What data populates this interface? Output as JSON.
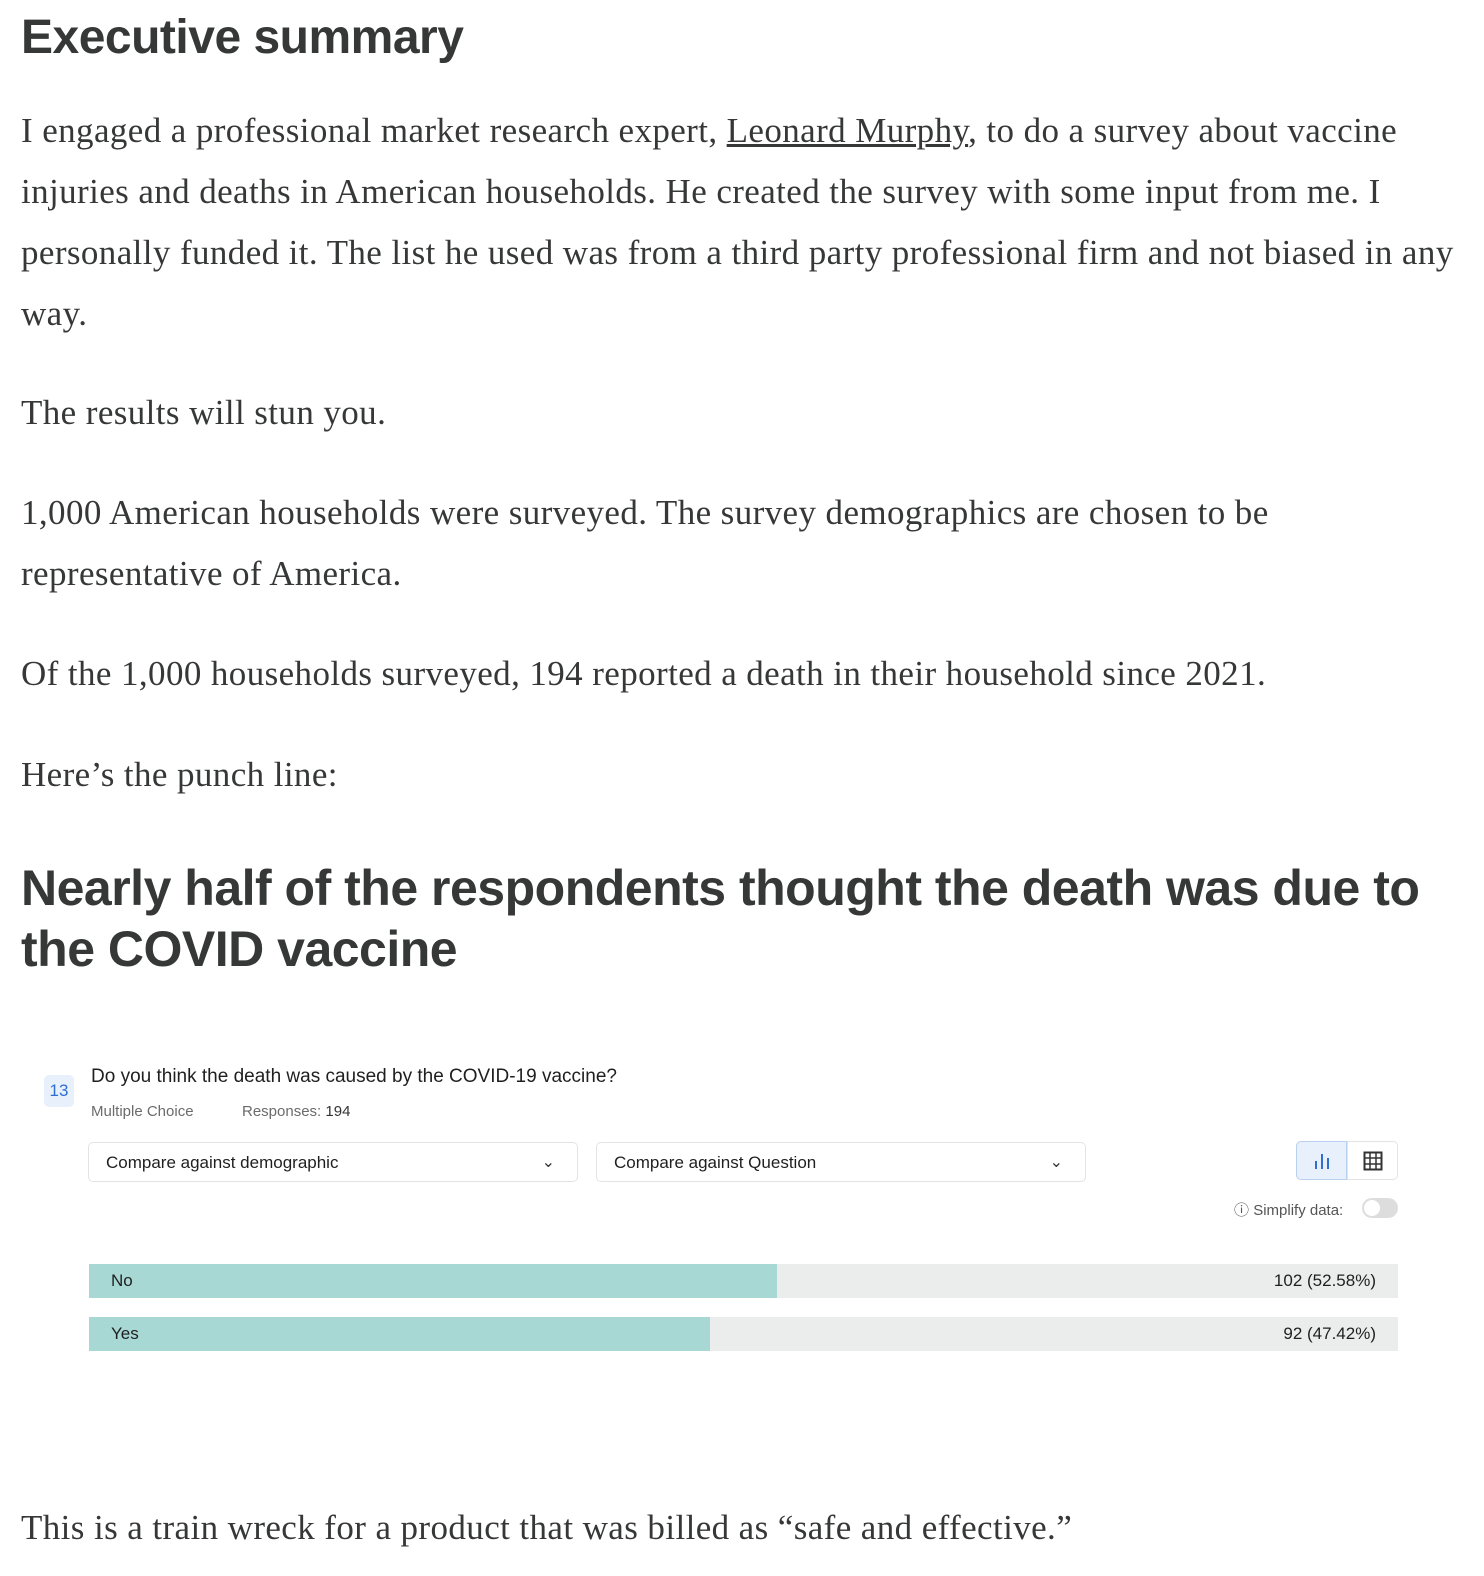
{
  "article": {
    "heading": "Executive summary",
    "p1_before": "I engaged a professional market research expert, ",
    "p1_link": "Leonard Murphy",
    "p1_after": ", to do a survey about vaccine injuries and deaths in American households. He created the survey with some input from me. I personally funded it. The list he used was from a third party professional firm and not biased in any way.",
    "p2": "The results will stun you.",
    "p3": "1,000 American households were surveyed. The survey demographics are chosen to be representative of America.",
    "p4": "Of the 1,000 households surveyed, 194 reported a death in their household since 2021.",
    "p5": "Here’s the punch line:",
    "subheading": "Nearly half of the respondents thought the death was due to the COVID vaccine",
    "p6": "This is a train wreck for a product that was billed as “safe and effective.”"
  },
  "survey": {
    "number": "13",
    "question": "Do you think the death was caused by the COVID-19 vaccine?",
    "type": "Multiple Choice",
    "responses_label": "Responses:",
    "responses": "194",
    "select1": "Compare against demographic",
    "select2": "Compare against Question",
    "simplify_label": "Simplify data:",
    "simplify_on": false,
    "active_view": "bar-chart",
    "bar_color": "#a8d8d4",
    "bars": [
      {
        "label": "No",
        "count": 102,
        "percent": 52.58,
        "value_text": "102 (52.58%)"
      },
      {
        "label": "Yes",
        "count": 92,
        "percent": 47.42,
        "value_text": "92 (47.42%)"
      }
    ]
  },
  "chart_data": {
    "type": "bar",
    "categories": [
      "No",
      "Yes"
    ],
    "values": [
      102,
      92
    ],
    "percents": [
      52.58,
      47.42
    ],
    "title": "Do you think the death was caused by the COVID-19 vaccine?"
  }
}
